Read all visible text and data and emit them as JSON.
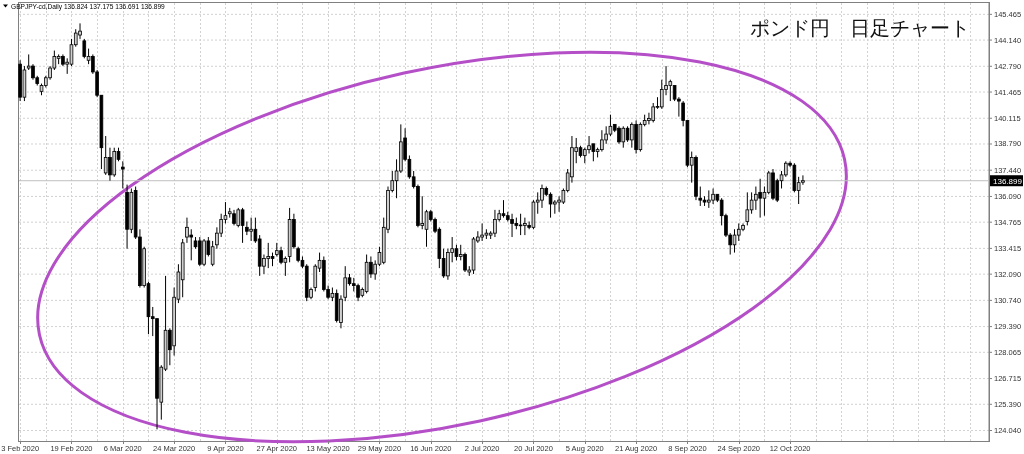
{
  "chart_data": {
    "type": "candlestick",
    "title": "ポンド円　日足チャート",
    "subtitle": "GBPJPY-cd,Daily 136.824 137.175 136.691 136.899",
    "categories": [
      "3 Feb 2020",
      null,
      null,
      null,
      null,
      null,
      null,
      null,
      null,
      null,
      null,
      null,
      "19 Feb 2020",
      null,
      null,
      null,
      null,
      null,
      null,
      null,
      null,
      null,
      null,
      null,
      "6 Mar 2020",
      null,
      null,
      null,
      null,
      null,
      null,
      null,
      null,
      null,
      null,
      null,
      "24 Mar 2020",
      null,
      null,
      null,
      null,
      null,
      null,
      null,
      null,
      null,
      null,
      null,
      "9 Apr 2020",
      null,
      null,
      null,
      null,
      null,
      null,
      null,
      null,
      null,
      null,
      null,
      "27 Apr 2020",
      null,
      null,
      null,
      null,
      null,
      null,
      null,
      null,
      null,
      null,
      null,
      "13 May 2020",
      null,
      null,
      null,
      null,
      null,
      null,
      null,
      null,
      null,
      null,
      null,
      "29 May 2020",
      null,
      null,
      null,
      null,
      null,
      null,
      null,
      null,
      null,
      null,
      null,
      "16 Jun 2020",
      null,
      null,
      null,
      null,
      null,
      null,
      null,
      null,
      null,
      null,
      null,
      "2 Jul 2020",
      null,
      null,
      null,
      null,
      null,
      null,
      null,
      null,
      null,
      null,
      null,
      "20 Jul 2020",
      null,
      null,
      null,
      null,
      null,
      null,
      null,
      null,
      null,
      null,
      null,
      "5 Aug 2020",
      null,
      null,
      null,
      null,
      null,
      null,
      null,
      null,
      null,
      null,
      null,
      "21 Aug 2020",
      null,
      null,
      null,
      null,
      null,
      null,
      null,
      null,
      null,
      null,
      null,
      "8 Sep 2020",
      null,
      null,
      null,
      null,
      null,
      null,
      null,
      null,
      null,
      null,
      null,
      "24 Sep 2020",
      null,
      null,
      null,
      null,
      null,
      null,
      null,
      null,
      null,
      null,
      null,
      "12 Oct 2020",
      null,
      null,
      null,
      null,
      null,
      null,
      null,
      null,
      null,
      null,
      null,
      null,
      null,
      null,
      null,
      null,
      null,
      null,
      null,
      null,
      null,
      null,
      null,
      null,
      null,
      null,
      null,
      null,
      null,
      null,
      null,
      null,
      null,
      null,
      null,
      null,
      null,
      null,
      null,
      null,
      null,
      null,
      null,
      null,
      null,
      null
    ],
    "ohlc": [
      [
        142.9,
        143.1,
        141.0,
        141.2
      ],
      [
        141.2,
        142.8,
        141.0,
        142.6
      ],
      [
        142.7,
        143.4,
        142.6,
        142.8
      ],
      [
        142.8,
        142.9,
        142.1,
        142.2
      ],
      [
        142.2,
        142.3,
        141.8,
        141.9
      ],
      [
        141.5,
        141.9,
        141.3,
        141.8
      ],
      [
        141.8,
        142.3,
        141.7,
        142.2
      ],
      [
        142.2,
        142.8,
        142.1,
        142.7
      ],
      [
        142.7,
        143.6,
        142.6,
        143.3
      ],
      [
        143.2,
        143.4,
        142.9,
        143.3
      ],
      [
        143.3,
        143.4,
        142.8,
        142.9
      ],
      [
        142.9,
        143.2,
        142.4,
        143.0
      ],
      [
        142.9,
        144.2,
        142.8,
        143.9
      ],
      [
        143.9,
        144.7,
        143.8,
        144.5
      ],
      [
        144.4,
        145.0,
        144.2,
        144.6
      ],
      [
        144.1,
        144.2,
        143.2,
        143.3
      ],
      [
        143.1,
        143.7,
        142.9,
        143.3
      ],
      [
        143.3,
        143.4,
        142.4,
        142.5
      ],
      [
        142.5,
        142.6,
        141.2,
        141.3
      ],
      [
        141.3,
        141.3,
        137.5,
        138.6
      ],
      [
        137.3,
        139.2,
        137.2,
        138.1
      ],
      [
        138.1,
        138.6,
        136.9,
        137.2
      ],
      [
        137.2,
        138.6,
        137.1,
        138.4
      ],
      [
        138.4,
        138.6,
        137.9,
        138.0
      ],
      [
        137.6,
        137.9,
        136.5,
        137.5
      ],
      [
        136.3,
        136.7,
        133.4,
        134.4
      ],
      [
        134.4,
        136.5,
        134.2,
        136.3
      ],
      [
        136.4,
        136.6,
        133.9,
        134.0
      ],
      [
        134.0,
        134.4,
        131.4,
        131.5
      ],
      [
        131.5,
        133.5,
        131.4,
        133.4
      ],
      [
        131.6,
        131.7,
        129.0,
        129.9
      ],
      [
        129.9,
        130.4,
        128.9,
        129.8
      ],
      [
        129.8,
        129.8,
        124.1,
        125.7
      ],
      [
        125.5,
        127.4,
        124.6,
        127.3
      ],
      [
        127.2,
        132.0,
        127.1,
        129.2
      ],
      [
        129.2,
        129.3,
        127.4,
        128.2
      ],
      [
        128.4,
        131.4,
        127.9,
        130.9
      ],
      [
        130.8,
        132.6,
        130.6,
        132.2
      ],
      [
        131.8,
        133.9,
        130.9,
        133.7
      ],
      [
        134.0,
        135.0,
        133.7,
        134.5
      ],
      [
        134.1,
        134.4,
        132.8,
        134.0
      ],
      [
        133.8,
        134.0,
        133.4,
        133.5
      ],
      [
        133.8,
        134.0,
        132.5,
        132.6
      ],
      [
        132.6,
        133.9,
        132.5,
        133.8
      ],
      [
        133.8,
        134.0,
        133.0,
        133.1
      ],
      [
        132.6,
        133.8,
        132.5,
        133.5
      ],
      [
        133.6,
        134.5,
        133.4,
        134.2
      ],
      [
        134.2,
        135.2,
        134.0,
        134.9
      ],
      [
        134.9,
        135.8,
        134.7,
        135.1
      ],
      [
        135.2,
        135.5,
        135.0,
        135.3
      ],
      [
        135.2,
        135.4,
        134.6,
        134.7
      ],
      [
        134.6,
        135.5,
        134.5,
        135.4
      ],
      [
        135.4,
        135.5,
        133.7,
        134.6
      ],
      [
        134.5,
        134.8,
        134.1,
        134.3
      ],
      [
        134.3,
        135.0,
        133.8,
        134.4
      ],
      [
        134.4,
        135.0,
        133.7,
        133.8
      ],
      [
        133.9,
        134.1,
        132.0,
        132.5
      ],
      [
        132.5,
        133.1,
        132.1,
        132.9
      ],
      [
        132.9,
        133.7,
        132.4,
        133.0
      ],
      [
        133.0,
        133.2,
        132.5,
        132.9
      ],
      [
        133.1,
        133.7,
        133.0,
        133.3
      ],
      [
        133.3,
        133.5,
        132.6,
        132.7
      ],
      [
        132.7,
        133.0,
        132.0,
        132.9
      ],
      [
        133.0,
        135.5,
        132.7,
        134.9
      ],
      [
        134.9,
        135.2,
        133.4,
        133.5
      ],
      [
        133.4,
        133.5,
        132.7,
        132.8
      ],
      [
        132.8,
        133.0,
        132.4,
        132.5
      ],
      [
        132.5,
        132.6,
        130.7,
        130.9
      ],
      [
        130.9,
        131.4,
        130.8,
        131.3
      ],
      [
        131.4,
        132.6,
        131.2,
        132.5
      ],
      [
        132.4,
        133.2,
        132.2,
        132.8
      ],
      [
        132.8,
        133.0,
        131.2,
        131.3
      ],
      [
        131.3,
        131.5,
        130.8,
        130.9
      ],
      [
        130.9,
        131.4,
        130.7,
        131.1
      ],
      [
        131.1,
        131.3,
        129.6,
        129.7
      ],
      [
        129.6,
        131.0,
        129.3,
        130.8
      ],
      [
        130.9,
        132.5,
        130.7,
        131.9
      ],
      [
        131.9,
        132.1,
        131.5,
        131.6
      ],
      [
        131.6,
        131.9,
        131.2,
        131.5
      ],
      [
        131.5,
        131.6,
        130.7,
        130.9
      ],
      [
        131.0,
        131.4,
        130.9,
        131.3
      ],
      [
        131.2,
        133.1,
        131.1,
        132.7
      ],
      [
        132.7,
        133.0,
        131.9,
        132.1
      ],
      [
        132.1,
        132.8,
        131.8,
        132.6
      ],
      [
        132.6,
        133.5,
        132.5,
        133.2
      ],
      [
        132.7,
        135.0,
        132.6,
        134.5
      ],
      [
        134.4,
        136.6,
        134.2,
        136.4
      ],
      [
        136.4,
        137.4,
        136.3,
        136.9
      ],
      [
        136.9,
        138.0,
        136.0,
        137.4
      ],
      [
        137.4,
        139.8,
        137.3,
        138.9
      ],
      [
        139.1,
        139.6,
        137.9,
        138.0
      ],
      [
        138.0,
        138.2,
        137.0,
        137.1
      ],
      [
        137.1,
        137.4,
        136.5,
        136.6
      ],
      [
        136.6,
        136.7,
        134.5,
        134.6
      ],
      [
        134.6,
        136.1,
        134.4,
        134.7
      ],
      [
        134.4,
        135.4,
        133.5,
        135.3
      ],
      [
        135.3,
        135.4,
        134.8,
        134.9
      ],
      [
        134.9,
        135.0,
        134.2,
        134.3
      ],
      [
        134.4,
        134.5,
        132.4,
        132.9
      ],
      [
        132.9,
        133.4,
        131.9,
        132.0
      ],
      [
        132.0,
        133.4,
        131.8,
        133.2
      ],
      [
        133.2,
        134.0,
        132.7,
        133.4
      ],
      [
        133.4,
        133.6,
        132.8,
        133.0
      ],
      [
        133.0,
        133.6,
        132.8,
        133.1
      ],
      [
        133.1,
        133.2,
        132.2,
        132.3
      ],
      [
        132.2,
        132.5,
        132.0,
        132.3
      ],
      [
        132.3,
        134.0,
        132.1,
        133.9
      ],
      [
        133.8,
        134.3,
        133.7,
        134.0
      ],
      [
        134.0,
        134.7,
        133.8,
        134.1
      ],
      [
        134.1,
        134.4,
        133.9,
        134.2
      ],
      [
        134.1,
        134.3,
        133.9,
        134.2
      ],
      [
        134.2,
        135.4,
        134.0,
        134.9
      ],
      [
        134.9,
        135.4,
        134.8,
        135.2
      ],
      [
        135.2,
        135.9,
        135.0,
        135.1
      ],
      [
        135.1,
        135.3,
        134.8,
        134.9
      ],
      [
        134.9,
        135.2,
        134.0,
        134.7
      ],
      [
        134.7,
        135.0,
        134.4,
        134.6
      ],
      [
        134.6,
        135.2,
        134.1,
        134.6
      ],
      [
        134.6,
        135.0,
        134.1,
        134.7
      ],
      [
        134.6,
        134.8,
        134.4,
        134.5
      ],
      [
        134.5,
        135.9,
        134.4,
        135.8
      ],
      [
        135.8,
        136.3,
        135.2,
        135.9
      ],
      [
        135.9,
        136.7,
        135.5,
        136.5
      ],
      [
        136.5,
        136.6,
        136.1,
        136.2
      ],
      [
        136.2,
        136.3,
        135.0,
        135.7
      ],
      [
        135.7,
        135.9,
        135.2,
        135.8
      ],
      [
        135.8,
        136.1,
        135.3,
        135.9
      ],
      [
        135.8,
        136.5,
        135.7,
        136.4
      ],
      [
        136.4,
        137.5,
        136.3,
        137.3
      ],
      [
        137.1,
        139.2,
        136.8,
        138.6
      ],
      [
        138.4,
        139.1,
        137.8,
        138.6
      ],
      [
        138.6,
        138.7,
        138.1,
        138.2
      ],
      [
        138.2,
        138.6,
        137.8,
        138.5
      ],
      [
        138.5,
        139.2,
        138.3,
        138.7
      ],
      [
        138.8,
        138.8,
        137.9,
        138.4
      ],
      [
        138.4,
        138.6,
        138.1,
        138.5
      ],
      [
        138.5,
        139.5,
        138.4,
        139.0
      ],
      [
        139.0,
        139.7,
        138.8,
        139.3
      ],
      [
        139.3,
        140.3,
        139.2,
        139.7
      ],
      [
        139.8,
        139.8,
        139.4,
        139.5
      ],
      [
        139.6,
        139.7,
        138.8,
        138.9
      ],
      [
        138.9,
        139.7,
        138.6,
        139.6
      ],
      [
        139.6,
        139.7,
        138.9,
        139.0
      ],
      [
        139.0,
        139.9,
        138.6,
        139.8
      ],
      [
        139.8,
        140.0,
        138.3,
        138.5
      ],
      [
        138.5,
        139.9,
        138.4,
        139.8
      ],
      [
        139.8,
        140.3,
        139.7,
        140.0
      ],
      [
        140.0,
        140.4,
        139.8,
        140.1
      ],
      [
        140.0,
        140.9,
        139.9,
        140.7
      ],
      [
        140.7,
        141.2,
        140.6,
        140.7
      ],
      [
        140.7,
        142.1,
        140.6,
        141.6
      ],
      [
        141.6,
        142.8,
        141.3,
        141.8
      ],
      [
        141.8,
        142.1,
        141.0,
        142.0
      ],
      [
        141.8,
        141.8,
        141.0,
        141.1
      ],
      [
        141.1,
        141.2,
        140.2,
        141.0
      ],
      [
        140.9,
        141.0,
        139.7,
        140.0
      ],
      [
        140.0,
        140.0,
        137.6,
        137.7
      ],
      [
        137.7,
        138.4,
        136.8,
        138.1
      ],
      [
        138.1,
        138.2,
        135.9,
        136.1
      ],
      [
        136.0,
        136.6,
        135.6,
        135.9
      ],
      [
        135.9,
        136.1,
        135.6,
        135.8
      ],
      [
        135.8,
        136.4,
        135.5,
        135.9
      ],
      [
        135.9,
        136.5,
        135.7,
        136.2
      ],
      [
        136.2,
        136.2,
        135.8,
        135.9
      ],
      [
        135.9,
        136.0,
        134.6,
        135.1
      ],
      [
        135.1,
        135.2,
        134.0,
        134.1
      ],
      [
        134.1,
        134.2,
        133.1,
        133.6
      ],
      [
        133.6,
        134.4,
        133.2,
        134.1
      ],
      [
        134.1,
        134.7,
        133.8,
        134.4
      ],
      [
        134.4,
        134.7,
        134.3,
        134.6
      ],
      [
        134.8,
        136.3,
        134.6,
        135.4
      ],
      [
        135.4,
        136.3,
        135.2,
        135.9
      ],
      [
        135.9,
        136.6,
        135.4,
        136.2
      ],
      [
        136.3,
        137.0,
        135.0,
        136.0
      ],
      [
        136.0,
        136.6,
        135.1,
        136.3
      ],
      [
        136.3,
        137.4,
        136.2,
        137.3
      ],
      [
        137.3,
        137.5,
        135.9,
        136.0
      ],
      [
        136.9,
        137.0,
        135.8,
        135.9
      ],
      [
        136.9,
        137.4,
        136.5,
        137.2
      ],
      [
        137.2,
        137.9,
        137.1,
        137.8
      ],
      [
        137.8,
        137.9,
        137.6,
        137.7
      ],
      [
        137.7,
        137.8,
        136.3,
        136.4
      ],
      [
        136.4,
        137.1,
        135.7,
        136.8
      ],
      [
        136.824,
        137.175,
        136.691,
        136.899
      ],
      null,
      null,
      null,
      null,
      null,
      null,
      null,
      null,
      null,
      null,
      null,
      null,
      null,
      null,
      null,
      null,
      null,
      null,
      null,
      null,
      null,
      null,
      null,
      null,
      null,
      null,
      null,
      null,
      null,
      null,
      null,
      null,
      null,
      null,
      null,
      null,
      null,
      null,
      null,
      null,
      null,
      null,
      null
    ],
    "ylim": [
      123.5,
      146.1
    ],
    "yticks": [
      145.465,
      {
        "value": 144.14,
        "label": "144.140"
      },
      {
        "value": 142.79,
        "label": "142.790"
      },
      141.465,
      140.115,
      {
        "value": 138.79,
        "label": "138.790"
      },
      {
        "value": 137.44,
        "label": "137.440"
      },
      {
        "value": 136.09,
        "label": "136.090"
      },
      134.765,
      133.415,
      {
        "value": 132.09,
        "label": "132.090"
      },
      {
        "value": 130.74,
        "label": "130.740"
      },
      {
        "value": 129.39,
        "label": "129.390"
      },
      128.065,
      126.715,
      {
        "value": 125.39,
        "label": "125.390"
      },
      {
        "value": 124.04,
        "label": "124.040"
      }
    ],
    "grid": true,
    "ref_lines": [
      {
        "axis": "y",
        "value": 136.899,
        "label": "136.899",
        "color": "#c0c0c0"
      }
    ]
  }
}
